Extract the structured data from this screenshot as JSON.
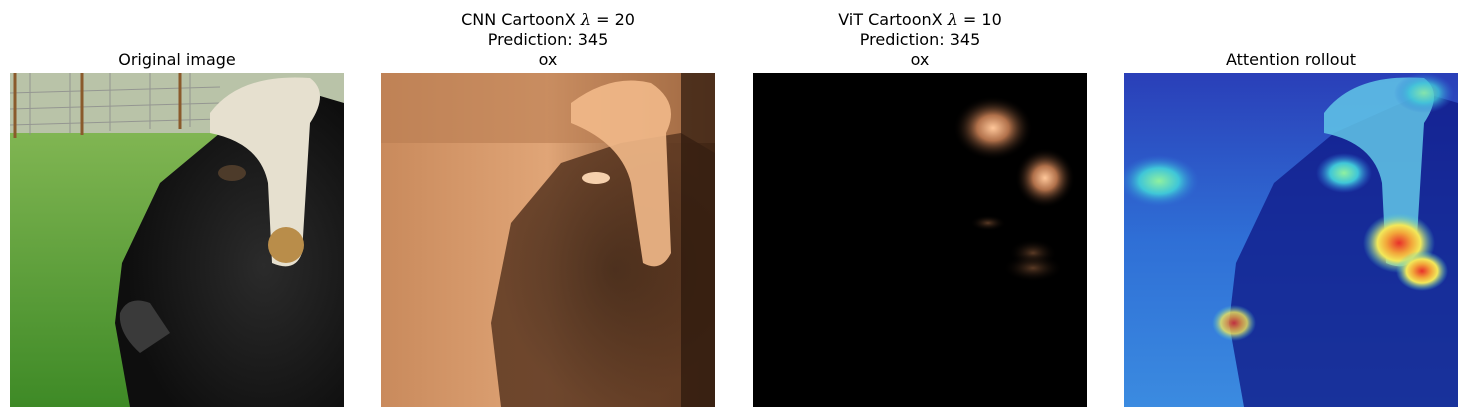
{
  "panels": [
    {
      "title_lines": [
        "Original image"
      ]
    },
    {
      "title_prefix": "CNN CartoonX ",
      "lambda_symbol": "λ",
      "lambda_value": " = 20",
      "line2": "Prediction: 345",
      "line3": "ox"
    },
    {
      "title_prefix": "ViT CartoonX ",
      "lambda_symbol": "λ",
      "lambda_value": " = 10",
      "line2": "Prediction: 345",
      "line3": "ox"
    },
    {
      "title_lines": [
        "Attention rollout"
      ]
    }
  ],
  "colors": {
    "grass": "#5fa13a",
    "fur": "#1a1a1a",
    "horn": "#e6e0cf",
    "copper_light": "#f2b98a",
    "copper_dark": "#3a2213",
    "jet_blue": "#1c2fb5",
    "jet_red": "#e8302a"
  },
  "icons": [
    "ox-photo",
    "cnn-cartoonx-mask",
    "vit-cartoonx-mask",
    "attention-rollout-heatmap"
  ]
}
